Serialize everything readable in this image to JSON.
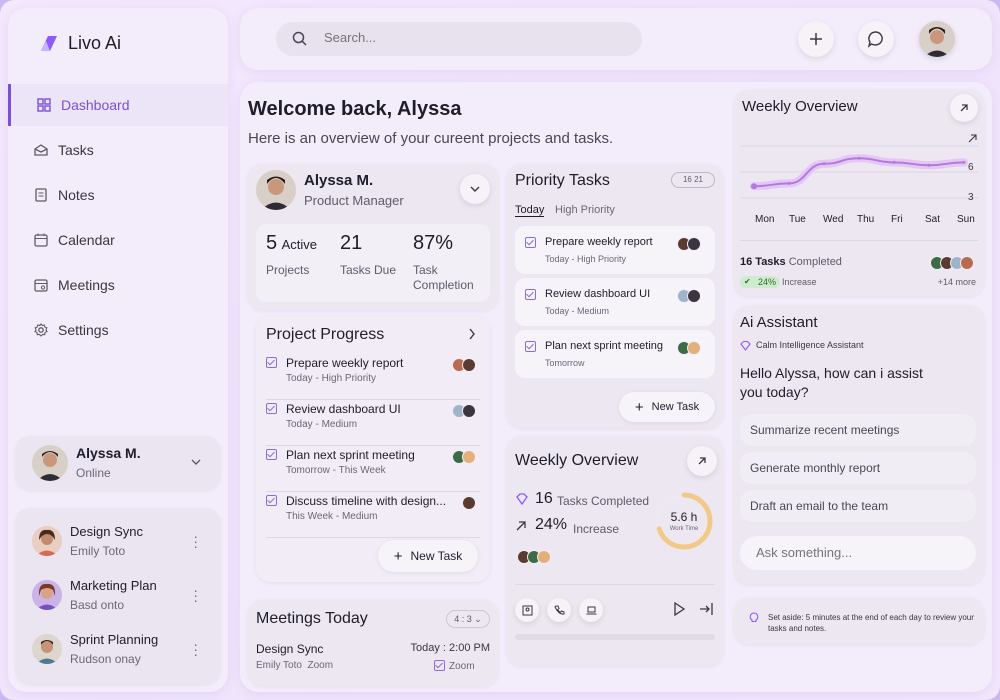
{
  "app": {
    "name": "Livo Ai",
    "accent": "#7b4fd6"
  },
  "search": {
    "placeholder": "Search..."
  },
  "nav": [
    {
      "label": "Dashboard",
      "icon": "dashboard-icon",
      "active": true
    },
    {
      "label": "Tasks",
      "icon": "tasks-icon"
    },
    {
      "label": "Notes",
      "icon": "notes-icon"
    },
    {
      "label": "Calendar",
      "icon": "calendar-icon"
    },
    {
      "label": "Meetings",
      "icon": "meetings-icon"
    },
    {
      "label": "Settings",
      "icon": "settings-icon"
    }
  ],
  "user": {
    "name": "Alyssa M.",
    "status": "Online"
  },
  "meetings_list": [
    {
      "title": "Design Sync",
      "person": "Emily Toto"
    },
    {
      "title": "Marketing Plan",
      "person": "Basd onto"
    },
    {
      "title": "Sprint Planning",
      "person": "Rudson onay"
    }
  ],
  "welcome": {
    "title": "Welcome back, Alyssa",
    "subtitle": "Here is an overview of your cureent projects and tasks."
  },
  "profile": {
    "name": "Alyssa M.",
    "role": "Product Manager",
    "stats": [
      {
        "value": "5",
        "suffix": "Active",
        "label": "Projects"
      },
      {
        "value": "21",
        "suffix": "",
        "label": "Tasks Due"
      },
      {
        "value": "87%",
        "suffix": "",
        "label": "Task Completion"
      }
    ]
  },
  "project_progress": {
    "title": "Project Progress",
    "new_task": "New Task",
    "items": [
      {
        "title": "Prepare weekly report",
        "meta": "Today - High Priority"
      },
      {
        "title": "Review dashboard UI",
        "meta": "Today - Medium"
      },
      {
        "title": "Plan next sprint meeting",
        "meta": "Tomorrow - This Week"
      },
      {
        "title": "Discuss timeline with design...",
        "meta": "This Week - Medium"
      }
    ]
  },
  "meetings_today": {
    "title": "Meetings Today",
    "badge": "4 : 3",
    "item": {
      "title": "Design Sync",
      "time": "Today : 2:00 PM",
      "person": "Emily Toto",
      "place": "Zoom",
      "tag": "Zoom"
    }
  },
  "priority": {
    "title": "Priority Tasks",
    "badge": "16 21",
    "tabs": [
      "Today",
      "High Priority"
    ],
    "new_task": "New Task",
    "items": [
      {
        "title": "Prepare weekly report",
        "meta": "Today - High Priority"
      },
      {
        "title": "Review dashboard UI",
        "meta": "Today - Medium"
      },
      {
        "title": "Plan next sprint meeting",
        "meta": "Tomorrow"
      }
    ]
  },
  "weekly_mid": {
    "title": "Weekly Overview",
    "count": "16",
    "count_label": "Tasks Completed",
    "pct": "24%",
    "pct_label": "Increase",
    "ring_value": "5.6 h",
    "ring_label": "Work Time",
    "ring_progress": 0.7
  },
  "weekly_top": {
    "title": "Weekly Overview",
    "y_ticks": [
      "6",
      "3"
    ],
    "days": [
      "Mon",
      "Tue",
      "Wed",
      "Thu",
      "Fri",
      "Sat",
      "Sun"
    ],
    "tasks_count": "16 Tasks",
    "tasks_label": "Completed",
    "pct": "24%",
    "pct_label": "Increase",
    "more": "+14 more"
  },
  "chart_data": {
    "type": "line",
    "categories": [
      "Mon",
      "Tue",
      "Wed",
      "Thu",
      "Fri",
      "Sat",
      "Sun"
    ],
    "values": [
      4.2,
      4.4,
      5.8,
      6.2,
      5.9,
      5.7,
      5.9
    ],
    "ylim": [
      2.5,
      7.5
    ],
    "title": "Weekly Overview"
  },
  "assistant": {
    "title": "Ai Assistant",
    "subtitle": "Calm Intelligence Assistant",
    "greeting": "Hello Alyssa, how can i assist you today?",
    "suggestions": [
      "Summarize recent meetings",
      "Generate monthly report",
      "Draft an email to the team"
    ],
    "input_placeholder": "Ask something..."
  },
  "tip": {
    "text": "Set aside: 5 minutes at the end of each day to review your tasks and notes."
  }
}
